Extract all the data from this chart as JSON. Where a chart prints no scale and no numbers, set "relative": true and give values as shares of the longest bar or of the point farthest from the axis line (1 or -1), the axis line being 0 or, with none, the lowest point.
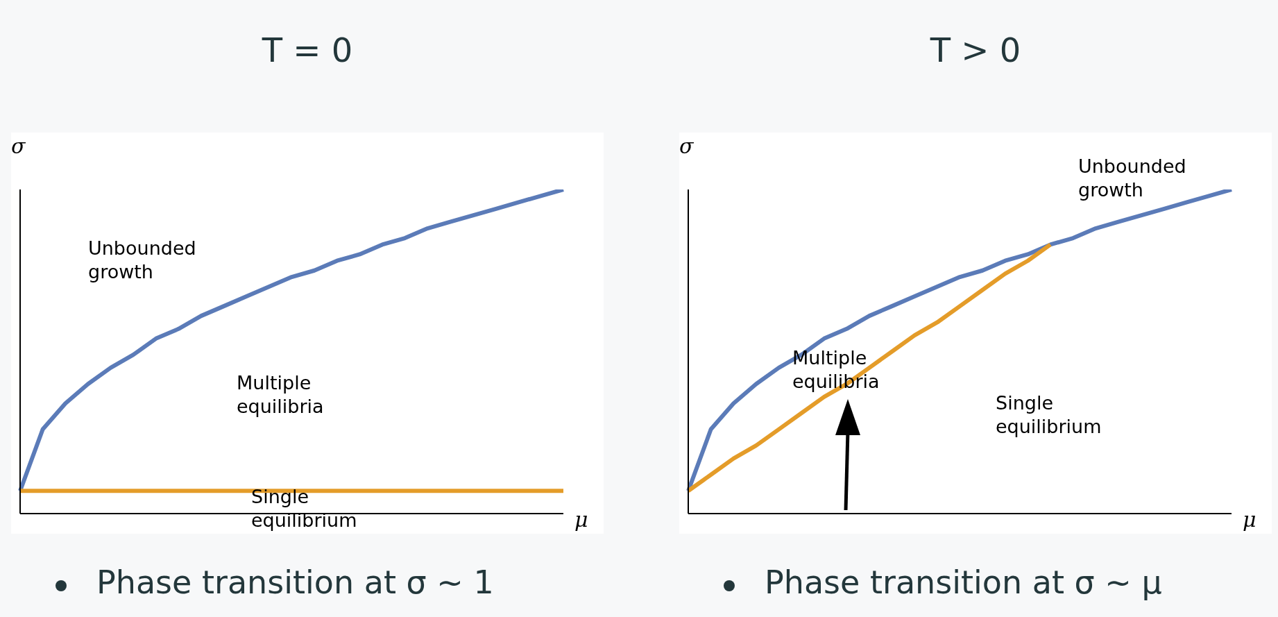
{
  "chart_data": [
    {
      "type": "line",
      "title": "T = 0",
      "xlabel": "μ",
      "ylabel": "σ",
      "relative": true,
      "grid": false,
      "legend": false,
      "marker": "none",
      "categories": [
        null,
        null,
        null,
        null,
        null,
        null,
        null,
        null,
        null,
        null,
        null,
        null,
        null,
        null,
        null,
        null,
        null,
        null,
        null,
        null,
        null,
        null,
        null,
        null,
        null
      ],
      "series": [
        {
          "color": "#5b7bb8",
          "values": [
            0.07,
            0.26,
            0.34,
            0.4,
            0.45,
            0.49,
            0.54,
            0.57,
            0.61,
            0.64,
            0.67,
            0.7,
            0.73,
            0.75,
            0.78,
            0.8,
            0.83,
            0.85,
            0.88,
            0.9,
            0.92,
            0.94,
            0.96,
            0.98,
            1.0
          ]
        },
        {
          "color": "#e49c29",
          "values": [
            0.07,
            0.07,
            0.07,
            0.07,
            0.07,
            0.07,
            0.07,
            0.07,
            0.07,
            0.07,
            0.07,
            0.07,
            0.07,
            0.07,
            0.07,
            0.07,
            0.07,
            0.07,
            0.07,
            0.07,
            0.07,
            0.07,
            0.07,
            0.07,
            0.07
          ]
        }
      ],
      "annotations": [
        "Unbounded growth",
        "Multiple equilibria",
        "Single equilibrium",
        "Phase transition at σ ∼ 1"
      ]
    },
    {
      "type": "line",
      "title": "T > 0",
      "xlabel": "μ",
      "ylabel": "σ",
      "relative": true,
      "grid": false,
      "legend": false,
      "marker": "none",
      "categories": [
        null,
        null,
        null,
        null,
        null,
        null,
        null,
        null,
        null,
        null,
        null,
        null,
        null,
        null,
        null,
        null,
        null,
        null,
        null,
        null,
        null,
        null,
        null,
        null,
        null
      ],
      "series": [
        {
          "color": "#5b7bb8",
          "values": [
            0.07,
            0.26,
            0.34,
            0.4,
            0.45,
            0.49,
            0.54,
            0.57,
            0.61,
            0.64,
            0.67,
            0.7,
            0.73,
            0.75,
            0.78,
            0.8,
            0.83,
            0.85,
            0.88,
            0.9,
            0.92,
            0.94,
            0.96,
            0.98,
            1.0
          ]
        },
        {
          "color": "#e49c29",
          "values": [
            0.07,
            0.12,
            0.17,
            0.21,
            0.26,
            0.31,
            0.36,
            0.4,
            0.45,
            0.5,
            0.55,
            0.59,
            0.64,
            0.69,
            0.74,
            0.78,
            0.83,
            null,
            null,
            null,
            null,
            null,
            null,
            null,
            null
          ]
        }
      ],
      "annotations": [
        "Unbounded growth",
        "Multiple equilibria",
        "Single equilibrium",
        "Phase transition at σ ∼ μ"
      ]
    }
  ]
}
